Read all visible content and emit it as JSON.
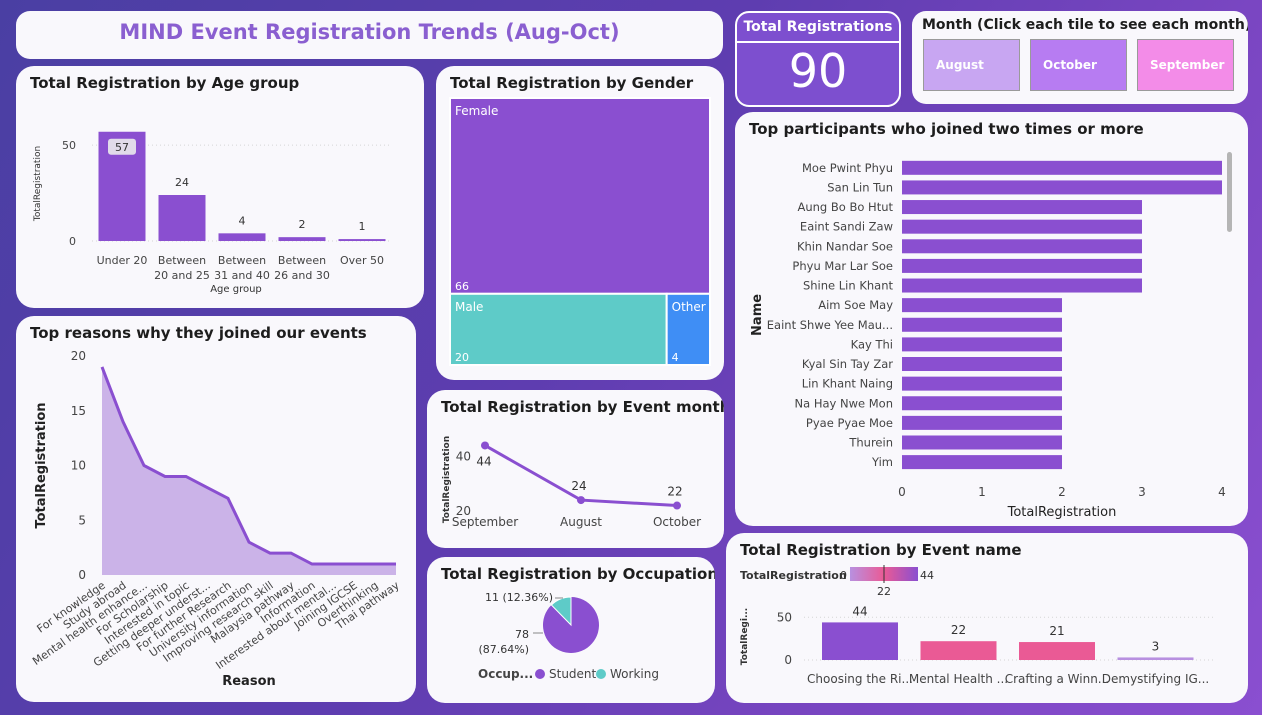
{
  "header": {
    "title": "MIND Event Registration Trends (Aug-Oct)"
  },
  "kpi": {
    "label": "Total Registrations",
    "value": "90"
  },
  "month_slicer": {
    "title": "Month (Click each tile to see each month)",
    "tiles": [
      {
        "label": "August",
        "color": "#c8a6f2"
      },
      {
        "label": "October",
        "color": "#b77cf2"
      },
      {
        "label": "September",
        "color": "#f38ce8"
      }
    ]
  },
  "colors": {
    "purple": "#8a4fd0",
    "teal": "#5ecbc8",
    "blue": "#3f8ef5",
    "pink": "#ea5a95",
    "light_purple": "#cbb3e8"
  },
  "chart_data": [
    {
      "id": "age",
      "type": "bar",
      "title": "Total Registration by Age group",
      "xlabel": "Age group",
      "ylabel": "TotalRegistration",
      "categories": [
        [
          "Under 20"
        ],
        [
          "Between",
          "20 and 25"
        ],
        [
          "Between",
          "31 and 40"
        ],
        [
          "Between",
          "26 and 30"
        ],
        [
          "Over 50"
        ]
      ],
      "values": [
        57,
        24,
        4,
        2,
        1
      ],
      "yticks": [
        0,
        50
      ],
      "ylim": [
        0,
        60
      ]
    },
    {
      "id": "gender",
      "type": "treemap",
      "title": "Total Registration by Gender",
      "items": [
        {
          "name": "Female",
          "value": 66,
          "color": "#8a4fd0"
        },
        {
          "name": "Male",
          "value": 20,
          "color": "#5ecbc8"
        },
        {
          "name": "Other",
          "value": 4,
          "color": "#3f8ef5"
        }
      ]
    },
    {
      "id": "reasons",
      "type": "area",
      "title": "Top reasons why they joined our events",
      "xlabel": "Reason",
      "ylabel": "TotalRegistration",
      "categories": [
        "For knowledge",
        "Study abroad",
        "Mental health enhance...",
        "For Scholarship",
        "Interested in topic",
        "Getting deeper underst...",
        "For further Research",
        "University information",
        "Improving research skill",
        "Malaysia pathway",
        "Information",
        "Interested about mental...",
        "Joining IGCSE",
        "Overthinking",
        "Thai pathway"
      ],
      "values": [
        19,
        14,
        10,
        9,
        9,
        8,
        7,
        3,
        2,
        2,
        1,
        1,
        1,
        1,
        1
      ],
      "yticks": [
        0,
        5,
        10,
        15,
        20
      ],
      "ylim": [
        0,
        20
      ]
    },
    {
      "id": "month",
      "type": "line",
      "title": "Total Registration by Event month",
      "ylabel": "TotalRegistration",
      "categories": [
        "September",
        "August",
        "October"
      ],
      "values": [
        44,
        24,
        22
      ],
      "yticks": [
        20,
        40
      ],
      "ylim": [
        20,
        46
      ]
    },
    {
      "id": "occupation",
      "type": "pie",
      "title": "Total Registration by Occupation",
      "legend_title": "Occup...",
      "slices": [
        {
          "name": "Student",
          "value": 78,
          "label": "78\n(87.64%)",
          "color": "#8a4fd0"
        },
        {
          "name": "Working",
          "value": 11,
          "label": "11 (12.36%)",
          "color": "#5ecbc8"
        }
      ]
    },
    {
      "id": "participants",
      "type": "bar",
      "orientation": "horizontal",
      "title": "Top participants who joined two times or more",
      "xlabel": "TotalRegistration",
      "ylabel": "Name",
      "categories": [
        "Moe Pwint Phyu",
        "San Lin Tun",
        "Aung Bo Bo Htut",
        "Eaint Sandi Zaw",
        "Khin Nandar Soe",
        "Phyu Mar Lar Soe",
        "Shine Lin Khant",
        "Aim Soe May",
        "Eaint Shwe Yee Mau...",
        "Kay Thi",
        "Kyal Sin Tay Zar",
        "Lin Khant Naing",
        "Na Hay Nwe Mon",
        "Pyae Pyae Moe",
        "Thurein",
        "Yim"
      ],
      "values": [
        4,
        4,
        3,
        3,
        3,
        3,
        3,
        2,
        2,
        2,
        2,
        2,
        2,
        2,
        2,
        2
      ],
      "xticks": [
        0,
        1,
        2,
        3,
        4
      ],
      "xlim": [
        0,
        4
      ]
    },
    {
      "id": "event",
      "type": "bar",
      "title": "Total Registration by Event name",
      "ylabel": "TotalRegi...",
      "legend": {
        "title": "TotalRegistration",
        "min": "0",
        "max": "44",
        "marker": "22"
      },
      "categories": [
        "Choosing the Ri...",
        "Mental Health ...",
        "Crafting a Winn...",
        "Demystifying IG..."
      ],
      "values": [
        44,
        22,
        21,
        3
      ],
      "colors": [
        "#8a4fd0",
        "#ea5a95",
        "#ea5a95",
        "#b890e0"
      ],
      "yticks": [
        0,
        50
      ],
      "ylim": [
        0,
        55
      ]
    }
  ]
}
